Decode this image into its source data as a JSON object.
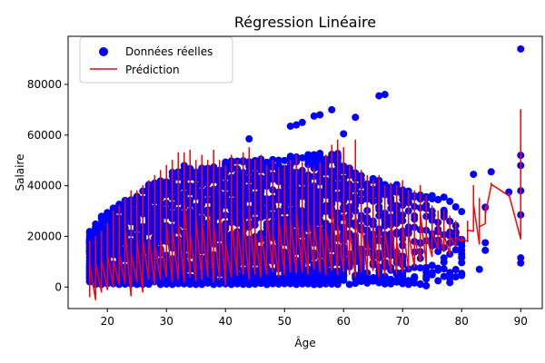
{
  "chart_data": {
    "type": "scatter",
    "title": "Régression Linéaire",
    "xlabel": "Âge",
    "ylabel": "Salaire",
    "xlim": [
      13.35,
      93.65
    ],
    "ylim": [
      -8500,
      99000
    ],
    "xticks": [
      20,
      30,
      40,
      50,
      60,
      70,
      80,
      90
    ],
    "yticks": [
      0,
      20000,
      40000,
      60000,
      80000
    ],
    "grid": false,
    "legend_position": "top-left",
    "legend": [
      {
        "label": "Données réelles",
        "kind": "marker",
        "color": "#0000ff"
      },
      {
        "label": "Prédiction",
        "kind": "line",
        "color": "#ff0000"
      }
    ],
    "series": [
      {
        "name": "Données réelles",
        "kind": "scatter",
        "color": "#0000ff",
        "x_range": [
          17,
          90
        ],
        "y_range": [
          0,
          94000
        ],
        "outliers": [
          {
            "x": 90,
            "y": 94000
          },
          {
            "x": 67,
            "y": 76000
          },
          {
            "x": 66,
            "y": 75500
          },
          {
            "x": 58,
            "y": 70000
          },
          {
            "x": 55,
            "y": 67500
          },
          {
            "x": 56,
            "y": 68000
          },
          {
            "x": 62,
            "y": 67000
          },
          {
            "x": 44,
            "y": 58500
          },
          {
            "x": 60,
            "y": 60500
          },
          {
            "x": 52,
            "y": 64000
          },
          {
            "x": 51,
            "y": 63500
          },
          {
            "x": 53,
            "y": 65000
          },
          {
            "x": 82,
            "y": 44500
          },
          {
            "x": 85,
            "y": 45500
          },
          {
            "x": 88,
            "y": 37500
          },
          {
            "x": 90,
            "y": 52000
          },
          {
            "x": 90,
            "y": 48000
          },
          {
            "x": 90,
            "y": 38000
          },
          {
            "x": 90,
            "y": 28500
          },
          {
            "x": 90,
            "y": 11500
          },
          {
            "x": 90,
            "y": 9500
          },
          {
            "x": 84,
            "y": 31500
          },
          {
            "x": 84,
            "y": 17500
          },
          {
            "x": 84,
            "y": 14500
          },
          {
            "x": 83,
            "y": 7000
          },
          {
            "x": 74,
            "y": 500
          },
          {
            "x": 72,
            "y": 3500
          },
          {
            "x": 71,
            "y": 2500
          }
        ]
      },
      {
        "name": "Prédiction",
        "kind": "line",
        "color": "#ff0000",
        "vertical_extent_by_age": [
          [
            17,
            -4000,
            18000
          ],
          [
            18,
            -5000,
            20000
          ],
          [
            19,
            -2000,
            22000
          ],
          [
            20,
            -1000,
            25000
          ],
          [
            21,
            0,
            30000
          ],
          [
            22,
            1000,
            32000
          ],
          [
            23,
            1500,
            35000
          ],
          [
            24,
            -3500,
            38000
          ],
          [
            25,
            2000,
            38000
          ],
          [
            26,
            -2000,
            40000
          ],
          [
            27,
            3000,
            42000
          ],
          [
            28,
            1000,
            44000
          ],
          [
            29,
            3000,
            46000
          ],
          [
            30,
            4000,
            48000
          ],
          [
            31,
            2000,
            50000
          ],
          [
            32,
            3000,
            53000
          ],
          [
            33,
            2000,
            53000
          ],
          [
            34,
            4000,
            54000
          ],
          [
            35,
            2500,
            50000
          ],
          [
            36,
            3000,
            52000
          ],
          [
            37,
            4000,
            50000
          ],
          [
            38,
            2000,
            54000
          ],
          [
            39,
            3000,
            50000
          ],
          [
            40,
            1000,
            48000
          ],
          [
            41,
            4000,
            52000
          ],
          [
            42,
            4500,
            50000
          ],
          [
            43,
            5000,
            53000
          ],
          [
            44,
            3000,
            55000
          ],
          [
            45,
            5000,
            50000
          ],
          [
            46,
            4000,
            52000
          ],
          [
            47,
            5000,
            48000
          ],
          [
            48,
            6000,
            50000
          ],
          [
            49,
            4000,
            47000
          ],
          [
            50,
            5000,
            48000
          ],
          [
            51,
            6000,
            50000
          ],
          [
            52,
            5500,
            52000
          ],
          [
            53,
            6000,
            49000
          ],
          [
            54,
            5000,
            48000
          ],
          [
            55,
            7000,
            47000
          ],
          [
            56,
            6000,
            49000
          ],
          [
            57,
            5000,
            52000
          ],
          [
            58,
            6500,
            56000
          ],
          [
            59,
            5000,
            58000
          ],
          [
            60,
            6000,
            55000
          ],
          [
            61,
            5000,
            48000
          ],
          [
            62,
            4000,
            58000
          ],
          [
            63,
            6000,
            46000
          ],
          [
            64,
            5000,
            44000
          ],
          [
            65,
            6500,
            42000
          ],
          [
            66,
            4000,
            44000
          ],
          [
            67,
            5000,
            40000
          ],
          [
            68,
            6000,
            41000
          ],
          [
            69,
            5500,
            40000
          ],
          [
            70,
            6000,
            42000
          ],
          [
            71,
            7000,
            38000
          ],
          [
            72,
            8000,
            38000
          ],
          [
            73,
            10000,
            40000
          ],
          [
            74,
            9000,
            36000
          ],
          [
            75,
            12000,
            32000
          ],
          [
            76,
            15000,
            30000
          ],
          [
            77,
            14000,
            30000
          ],
          [
            78,
            13000,
            28000
          ],
          [
            79,
            16000,
            26000
          ],
          [
            80,
            18000,
            20000
          ],
          [
            81,
            18000,
            26000
          ],
          [
            82,
            22000,
            40000
          ],
          [
            83,
            17000,
            35000
          ],
          [
            84,
            25000,
            32000
          ],
          [
            85,
            40000,
            41000
          ],
          [
            88,
            36000,
            37000
          ],
          [
            90,
            19000,
            70000
          ]
        ]
      }
    ]
  }
}
